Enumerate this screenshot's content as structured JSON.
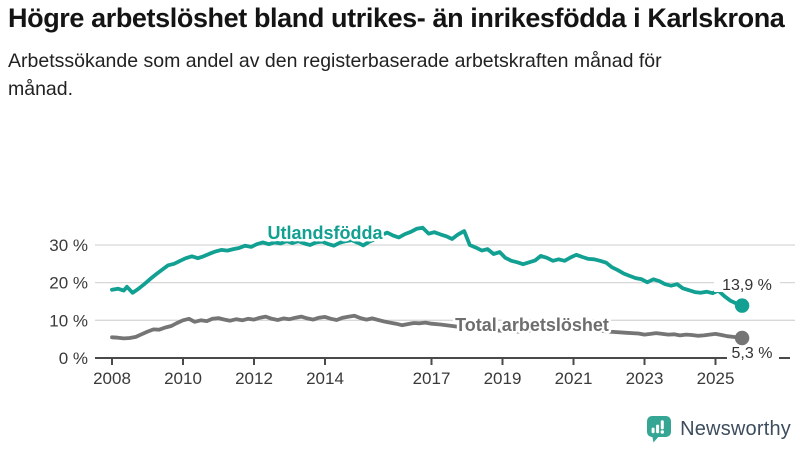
{
  "header": {
    "title": "Högre arbetslöshet bland utrikes- än inrikesfödda i Karlskrona",
    "subtitle": "Arbetssökande som andel av den registerbaserade arbetskraften månad för månad."
  },
  "chart_data": {
    "type": "line",
    "title": "Högre arbetslöshet bland utrikes- än inrikesfödda i Karlskrona",
    "subtitle": "Arbetssökande som andel av den registerbaserade arbetskraften månad för månad.",
    "xlabel": "",
    "ylabel": "",
    "x_axis": {
      "ticks": [
        2008,
        2010,
        2012,
        2014,
        2017,
        2019,
        2021,
        2023,
        2025
      ],
      "labels": [
        "2008",
        "2010",
        "2012",
        "2014",
        "2017",
        "2019",
        "2021",
        "2023",
        "2025"
      ],
      "range": [
        2007.9,
        2026.3
      ]
    },
    "y_axis": {
      "ticks": [
        0,
        10,
        20,
        30
      ],
      "labels": [
        "0 %",
        "10 %",
        "20 %",
        "30 %"
      ],
      "range": [
        0,
        36
      ],
      "grid": true
    },
    "legend_position": "inline-labels",
    "series": [
      {
        "id": "utlandsfodda",
        "name": "Utlandsfödda",
        "color": "#11a092",
        "end_value": 13.9,
        "end_label": "13,9 %",
        "points": [
          [
            2008.0,
            18.1
          ],
          [
            2008.17,
            18.4
          ],
          [
            2008.33,
            17.9
          ],
          [
            2008.42,
            18.9
          ],
          [
            2008.58,
            17.3
          ],
          [
            2008.75,
            18.4
          ],
          [
            2008.92,
            19.7
          ],
          [
            2009.08,
            21.0
          ],
          [
            2009.25,
            22.3
          ],
          [
            2009.42,
            23.5
          ],
          [
            2009.58,
            24.6
          ],
          [
            2009.75,
            25.0
          ],
          [
            2009.92,
            25.8
          ],
          [
            2010.08,
            26.5
          ],
          [
            2010.25,
            27.0
          ],
          [
            2010.42,
            26.5
          ],
          [
            2010.58,
            27.0
          ],
          [
            2010.75,
            27.7
          ],
          [
            2010.92,
            28.3
          ],
          [
            2011.08,
            28.7
          ],
          [
            2011.25,
            28.5
          ],
          [
            2011.42,
            28.9
          ],
          [
            2011.58,
            29.2
          ],
          [
            2011.75,
            29.8
          ],
          [
            2011.92,
            29.5
          ],
          [
            2012.08,
            30.2
          ],
          [
            2012.25,
            30.7
          ],
          [
            2012.42,
            30.2
          ],
          [
            2012.58,
            30.7
          ],
          [
            2012.75,
            30.4
          ],
          [
            2012.92,
            31.0
          ],
          [
            2013.08,
            30.5
          ],
          [
            2013.25,
            31.0
          ],
          [
            2013.42,
            30.4
          ],
          [
            2013.58,
            30.0
          ],
          [
            2013.75,
            30.7
          ],
          [
            2013.92,
            30.9
          ],
          [
            2014.08,
            30.3
          ],
          [
            2014.25,
            29.8
          ],
          [
            2014.42,
            30.6
          ],
          [
            2014.58,
            31.0
          ],
          [
            2014.75,
            31.3
          ],
          [
            2014.92,
            30.6
          ],
          [
            2015.08,
            29.9
          ],
          [
            2015.25,
            30.9
          ],
          [
            2015.42,
            31.6
          ],
          [
            2015.58,
            32.5
          ],
          [
            2015.75,
            33.3
          ],
          [
            2015.92,
            32.5
          ],
          [
            2016.08,
            32.0
          ],
          [
            2016.25,
            32.9
          ],
          [
            2016.42,
            33.5
          ],
          [
            2016.58,
            34.3
          ],
          [
            2016.75,
            34.6
          ],
          [
            2016.92,
            33.0
          ],
          [
            2017.08,
            33.4
          ],
          [
            2017.25,
            32.8
          ],
          [
            2017.42,
            32.3
          ],
          [
            2017.58,
            31.6
          ],
          [
            2017.75,
            32.8
          ],
          [
            2017.92,
            33.7
          ],
          [
            2018.08,
            30.0
          ],
          [
            2018.25,
            29.3
          ],
          [
            2018.42,
            28.5
          ],
          [
            2018.58,
            28.9
          ],
          [
            2018.75,
            27.6
          ],
          [
            2018.92,
            28.1
          ],
          [
            2019.08,
            26.6
          ],
          [
            2019.25,
            25.8
          ],
          [
            2019.42,
            25.4
          ],
          [
            2019.58,
            24.9
          ],
          [
            2019.75,
            25.4
          ],
          [
            2019.92,
            25.9
          ],
          [
            2020.08,
            27.1
          ],
          [
            2020.25,
            26.6
          ],
          [
            2020.42,
            25.8
          ],
          [
            2020.58,
            26.2
          ],
          [
            2020.75,
            25.8
          ],
          [
            2020.92,
            26.7
          ],
          [
            2021.08,
            27.4
          ],
          [
            2021.25,
            26.8
          ],
          [
            2021.42,
            26.3
          ],
          [
            2021.58,
            26.2
          ],
          [
            2021.75,
            25.8
          ],
          [
            2021.92,
            25.3
          ],
          [
            2022.08,
            24.1
          ],
          [
            2022.25,
            23.3
          ],
          [
            2022.42,
            22.4
          ],
          [
            2022.58,
            21.8
          ],
          [
            2022.75,
            21.2
          ],
          [
            2022.92,
            20.9
          ],
          [
            2023.08,
            20.1
          ],
          [
            2023.25,
            20.9
          ],
          [
            2023.42,
            20.4
          ],
          [
            2023.58,
            19.6
          ],
          [
            2023.75,
            19.2
          ],
          [
            2023.92,
            19.6
          ],
          [
            2024.08,
            18.5
          ],
          [
            2024.25,
            18.0
          ],
          [
            2024.42,
            17.5
          ],
          [
            2024.58,
            17.3
          ],
          [
            2024.75,
            17.6
          ],
          [
            2024.92,
            17.2
          ],
          [
            2025.08,
            17.9
          ],
          [
            2025.25,
            16.4
          ],
          [
            2025.42,
            15.2
          ],
          [
            2025.58,
            14.5
          ],
          [
            2025.75,
            13.9
          ]
        ]
      },
      {
        "id": "total",
        "name": "Total arbetslöshet",
        "color": "#757575",
        "end_value": 5.3,
        "end_label": "5,3 %",
        "points": [
          [
            2008.0,
            5.5
          ],
          [
            2008.17,
            5.4
          ],
          [
            2008.33,
            5.2
          ],
          [
            2008.5,
            5.3
          ],
          [
            2008.67,
            5.6
          ],
          [
            2008.83,
            6.3
          ],
          [
            2009.0,
            7.0
          ],
          [
            2009.17,
            7.6
          ],
          [
            2009.33,
            7.5
          ],
          [
            2009.5,
            8.1
          ],
          [
            2009.67,
            8.5
          ],
          [
            2009.83,
            9.3
          ],
          [
            2010.0,
            10.0
          ],
          [
            2010.17,
            10.4
          ],
          [
            2010.33,
            9.6
          ],
          [
            2010.5,
            10.0
          ],
          [
            2010.67,
            9.8
          ],
          [
            2010.83,
            10.4
          ],
          [
            2011.0,
            10.6
          ],
          [
            2011.17,
            10.2
          ],
          [
            2011.33,
            9.9
          ],
          [
            2011.5,
            10.3
          ],
          [
            2011.67,
            10.0
          ],
          [
            2011.83,
            10.4
          ],
          [
            2012.0,
            10.2
          ],
          [
            2012.17,
            10.7
          ],
          [
            2012.33,
            11.0
          ],
          [
            2012.5,
            10.4
          ],
          [
            2012.67,
            10.1
          ],
          [
            2012.83,
            10.5
          ],
          [
            2013.0,
            10.3
          ],
          [
            2013.17,
            10.7
          ],
          [
            2013.33,
            11.0
          ],
          [
            2013.5,
            10.5
          ],
          [
            2013.67,
            10.2
          ],
          [
            2013.83,
            10.7
          ],
          [
            2014.0,
            10.9
          ],
          [
            2014.17,
            10.4
          ],
          [
            2014.33,
            10.1
          ],
          [
            2014.5,
            10.7
          ],
          [
            2014.67,
            11.0
          ],
          [
            2014.83,
            11.2
          ],
          [
            2015.0,
            10.6
          ],
          [
            2015.17,
            10.2
          ],
          [
            2015.33,
            10.5
          ],
          [
            2015.5,
            10.1
          ],
          [
            2015.67,
            9.7
          ],
          [
            2015.83,
            9.4
          ],
          [
            2016.0,
            9.1
          ],
          [
            2016.17,
            8.7
          ],
          [
            2016.33,
            9.0
          ],
          [
            2016.5,
            9.3
          ],
          [
            2016.67,
            9.2
          ],
          [
            2016.83,
            9.4
          ],
          [
            2017.0,
            9.1
          ],
          [
            2017.25,
            8.9
          ],
          [
            2017.5,
            8.6
          ],
          [
            2017.75,
            8.3
          ],
          [
            2018.0,
            8.0
          ],
          [
            2018.5,
            7.6
          ],
          [
            2019.0,
            7.2
          ],
          [
            2019.5,
            7.0
          ],
          [
            2020.0,
            7.6
          ],
          [
            2020.33,
            8.6
          ],
          [
            2020.67,
            8.3
          ],
          [
            2021.0,
            8.0
          ],
          [
            2021.5,
            7.5
          ],
          [
            2022.0,
            7.0
          ],
          [
            2022.5,
            6.7
          ],
          [
            2022.83,
            6.5
          ],
          [
            2023.0,
            6.2
          ],
          [
            2023.17,
            6.4
          ],
          [
            2023.33,
            6.6
          ],
          [
            2023.5,
            6.4
          ],
          [
            2023.67,
            6.2
          ],
          [
            2023.83,
            6.3
          ],
          [
            2024.0,
            6.0
          ],
          [
            2024.17,
            6.2
          ],
          [
            2024.33,
            6.1
          ],
          [
            2024.5,
            5.9
          ],
          [
            2024.67,
            6.0
          ],
          [
            2024.83,
            6.2
          ],
          [
            2025.0,
            6.4
          ],
          [
            2025.17,
            6.1
          ],
          [
            2025.33,
            5.8
          ],
          [
            2025.5,
            5.6
          ],
          [
            2025.75,
            5.3
          ]
        ]
      }
    ]
  },
  "footer": {
    "brand": "Newsworthy",
    "brand_icon": "newsworthy-bar-chart-speech-bubble-icon",
    "brand_icon_color": "#35a693",
    "brand_text_color": "#3d4d5d"
  }
}
